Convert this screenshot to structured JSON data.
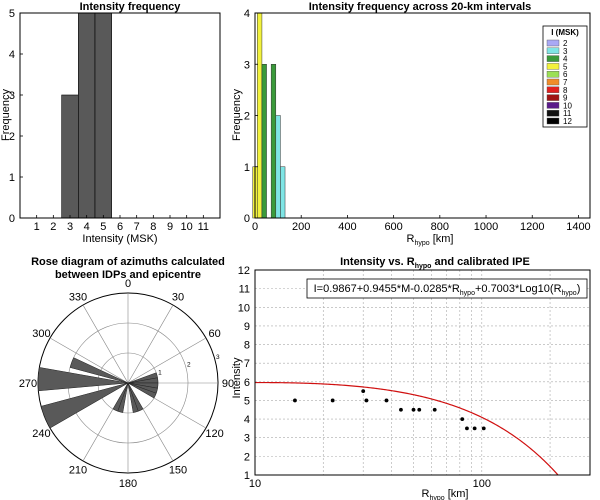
{
  "chart_data": [
    {
      "type": "bar",
      "title": "Intensity frequency",
      "xlabel": "Intensity (MSK)",
      "ylabel": "Frequency",
      "categories": [
        "1",
        "2",
        "3",
        "4",
        "5",
        "6",
        "7",
        "8",
        "9",
        "10",
        "11"
      ],
      "values": [
        0,
        0,
        3,
        5,
        5,
        0,
        0,
        0,
        0,
        0,
        0
      ],
      "xlim": [
        0,
        12
      ],
      "ylim": [
        0,
        5
      ],
      "yticks": [
        0,
        1,
        2,
        3,
        4,
        5
      ],
      "color": "#595959"
    },
    {
      "type": "bar",
      "title": "Intensity frequency across 20-km intervals",
      "xlabel_main": "R",
      "xlabel_sub": "hypo",
      "xlabel_unit": " [km]",
      "ylabel": "Frequency",
      "xlim": [
        0,
        1450
      ],
      "ylim": [
        0,
        4
      ],
      "xticks": [
        0,
        200,
        400,
        600,
        800,
        1000,
        1200,
        1400
      ],
      "yticks": [
        0,
        1,
        2,
        3,
        4
      ],
      "legend": {
        "title": "I (MSK)",
        "entries": [
          {
            "label": "2",
            "color": "#a9a9f5"
          },
          {
            "label": "3",
            "color": "#7fe5e5"
          },
          {
            "label": "4",
            "color": "#3a9a3a"
          },
          {
            "label": "5",
            "color": "#f2f23c"
          },
          {
            "label": "6",
            "color": "#9be056"
          },
          {
            "label": "7",
            "color": "#f08c2a"
          },
          {
            "label": "8",
            "color": "#e02020"
          },
          {
            "label": "9",
            "color": "#a01414"
          },
          {
            "label": "10",
            "color": "#5a1a8a"
          },
          {
            "label": "11",
            "color": "#101010"
          },
          {
            "label": "12",
            "color": "#000000"
          }
        ]
      },
      "series": [
        {
          "intensity": "5",
          "color": "#f2f23c",
          "bins": [
            {
              "x0": -10,
              "x1": 10,
              "value": 1
            },
            {
              "x0": 10,
              "x1": 30,
              "value": 4
            }
          ]
        },
        {
          "intensity": "4",
          "color": "#3a9a3a",
          "bins": [
            {
              "x0": 30,
              "x1": 50,
              "value": 3
            },
            {
              "x0": 70,
              "x1": 90,
              "value": 3
            }
          ]
        },
        {
          "intensity": "3",
          "color": "#7fe5e5",
          "bins": [
            {
              "x0": 90,
              "x1": 110,
              "value": 2
            },
            {
              "x0": 110,
              "x1": 130,
              "value": 1
            }
          ]
        }
      ]
    },
    {
      "type": "rose",
      "title_line1": "Rose diagram of azimuths calculated",
      "title_line2": "between  IDPs and epicentre",
      "angle_labels": [
        {
          "deg": 0,
          "label": "0"
        },
        {
          "deg": 30,
          "label": "30"
        },
        {
          "deg": 60,
          "label": "60"
        },
        {
          "deg": 90,
          "label": "90"
        },
        {
          "deg": 120,
          "label": "120"
        },
        {
          "deg": 150,
          "label": "150"
        },
        {
          "deg": 180,
          "label": "180"
        },
        {
          "deg": 210,
          "label": "210"
        },
        {
          "deg": 240,
          "label": "240"
        },
        {
          "deg": 270,
          "label": "270"
        },
        {
          "deg": 300,
          "label": "300"
        },
        {
          "deg": 330,
          "label": "330"
        }
      ],
      "radial_ticks": [
        1,
        2,
        3
      ],
      "rmax": 3,
      "bins": [
        {
          "start": 70,
          "end": 80,
          "value": 1
        },
        {
          "start": 80,
          "end": 90,
          "value": 1
        },
        {
          "start": 90,
          "end": 100,
          "value": 1
        },
        {
          "start": 100,
          "end": 110,
          "value": 1
        },
        {
          "start": 110,
          "end": 120,
          "value": 1
        },
        {
          "start": 150,
          "end": 160,
          "value": 1
        },
        {
          "start": 160,
          "end": 170,
          "value": 1
        },
        {
          "start": 190,
          "end": 200,
          "value": 1
        },
        {
          "start": 200,
          "end": 210,
          "value": 1
        },
        {
          "start": 240,
          "end": 255,
          "value": 3
        },
        {
          "start": 265,
          "end": 280,
          "value": 3
        },
        {
          "start": 285,
          "end": 295,
          "value": 2
        }
      ],
      "color": "#595959"
    },
    {
      "type": "scatter",
      "title_main": "Intensity vs. R",
      "title_sub": "hypo",
      "title_tail": " and calibrated IPE",
      "xlabel_main": "R",
      "xlabel_sub": "hypo",
      "xlabel_unit": " [km]",
      "ylabel": "Intensity",
      "xscale": "log",
      "xlim": [
        10,
        300
      ],
      "ylim": [
        1,
        12
      ],
      "xticks": [
        10,
        100
      ],
      "yticks": [
        1,
        2,
        3,
        4,
        5,
        6,
        7,
        8,
        9,
        10,
        11,
        12
      ],
      "points": [
        {
          "x": 15,
          "y": 5
        },
        {
          "x": 22,
          "y": 5
        },
        {
          "x": 30,
          "y": 5.5
        },
        {
          "x": 31,
          "y": 5
        },
        {
          "x": 38,
          "y": 5
        },
        {
          "x": 44,
          "y": 4.5
        },
        {
          "x": 50,
          "y": 4.5
        },
        {
          "x": 53,
          "y": 4.5
        },
        {
          "x": 62,
          "y": 4.5
        },
        {
          "x": 82,
          "y": 4
        },
        {
          "x": 86,
          "y": 3.5
        },
        {
          "x": 93,
          "y": 3.5
        },
        {
          "x": 102,
          "y": 3.5
        }
      ],
      "equation_parts": [
        {
          "t": "I=0.9867+0.9455*M-0.0285*R"
        },
        {
          "t": "hypo",
          "sub": true
        },
        {
          "t": "+0.7003*Log10(R"
        },
        {
          "t": "hypo",
          "sub": true
        },
        {
          "t": ")"
        }
      ],
      "curve": {
        "c0": 0.9867,
        "c_mag": 0.9455,
        "c_r": -0.0285,
        "c_log": 0.7003,
        "magnitude": 4.82
      },
      "line_color": "#d01010"
    }
  ]
}
